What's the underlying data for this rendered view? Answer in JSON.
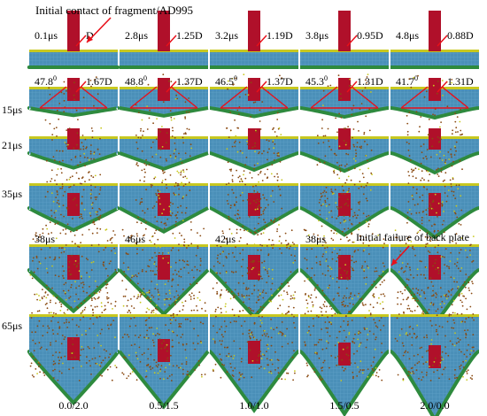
{
  "figure": {
    "top_annotation": "Initial  contact of fragment/AD995",
    "back_plate_annotation": "Initial  failure of back plate",
    "degree_suffix": "0",
    "columns": [
      {
        "ratio_label": "0.0/2.0",
        "r1_time": "0.1μs",
        "r1_dim": "D",
        "angle": "47.8",
        "r2_dim": "1.67D",
        "r5_time": "38μs",
        "crater": 0.55,
        "spread": 0.9
      },
      {
        "ratio_label": "0.5/1.5",
        "r1_time": "2.8μs",
        "r1_dim": "1.25D",
        "angle": "48.8",
        "r2_dim": "1.37D",
        "r5_time": "46μs",
        "crater": 0.65,
        "spread": 0.75
      },
      {
        "ratio_label": "1.0/1.0",
        "r1_time": "3.2μs",
        "r1_dim": "1.19D",
        "angle": "46.5",
        "r2_dim": "1.37D",
        "r5_time": "42μs",
        "crater": 0.75,
        "spread": 0.65
      },
      {
        "ratio_label": "1.5/0.5",
        "r1_time": "3.8μs",
        "r1_dim": "0.95D",
        "angle": "45.3",
        "r2_dim": "1.31D",
        "r5_time": "38μs",
        "crater": 0.85,
        "spread": 0.55
      },
      {
        "ratio_label": "2.0/0.0",
        "r1_time": "4.8μs",
        "r1_dim": "0.88D",
        "angle": "41.7",
        "r2_dim": "1.31D",
        "r5_time": "",
        "crater": 1.0,
        "spread": 0.45
      }
    ],
    "row_times": [
      "",
      "15μs",
      "21μs",
      "35μs",
      "",
      "65μs"
    ],
    "colors": {
      "ceramic": "#4a8fb8",
      "ceramic_grid": "#6fb0d4",
      "front_plate": "#c8c820",
      "back_plate": "#2e8a3e",
      "fragment": "#b0102a",
      "debris": "#8a4a12",
      "annotation": "#e8101a"
    }
  }
}
